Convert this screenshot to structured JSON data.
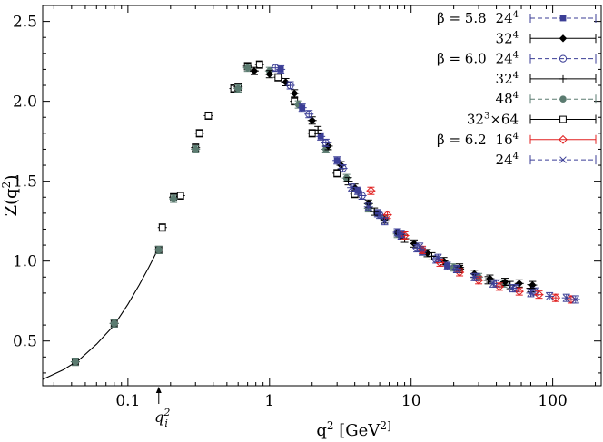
{
  "chart_data": {
    "type": "scatter",
    "title": "",
    "xlabel": "q^2 [GeV^2]",
    "ylabel": "Z(q^2)",
    "xscale": "log",
    "xlim": [
      0.025,
      220
    ],
    "ylim": [
      0.22,
      2.6
    ],
    "x_ticks": [
      {
        "value": 0.1,
        "label": "0.1"
      },
      {
        "value": 1,
        "label": "1"
      },
      {
        "value": 10,
        "label": "10"
      },
      {
        "value": 100,
        "label": "100"
      }
    ],
    "y_ticks": [
      {
        "value": 0.5,
        "label": "0.5"
      },
      {
        "value": 1.0,
        "label": "1.0"
      },
      {
        "value": 1.5,
        "label": "1.5"
      },
      {
        "value": 2.0,
        "label": "2.0"
      },
      {
        "value": 2.5,
        "label": "2.5"
      }
    ],
    "annotation": {
      "text": "q_i^2",
      "x": 0.165
    },
    "legend_placement": "top-right",
    "legend": [
      {
        "group": "β = 5.8",
        "lattice": "24^4",
        "marker": "square-filled",
        "color": "#3b3e96",
        "dashed": true
      },
      {
        "group": "",
        "lattice": "32^4",
        "marker": "diamond-filled",
        "color": "#000000",
        "dashed": false
      },
      {
        "group": "β = 6.0",
        "lattice": "24^4",
        "marker": "circle-open",
        "color": "#3b3e96",
        "dashed": true
      },
      {
        "group": "",
        "lattice": "32^4",
        "marker": "plus",
        "color": "#000000",
        "dashed": false
      },
      {
        "group": "",
        "lattice": "48^4",
        "marker": "circle-filled",
        "color": "#5b7b70",
        "dashed": true
      },
      {
        "group": "",
        "lattice": "32^3×64",
        "marker": "square-open",
        "color": "#000000",
        "dashed": false
      },
      {
        "group": "β = 6.2",
        "lattice": "16^4",
        "marker": "diamond-open",
        "color": "#e02020",
        "dashed": false
      },
      {
        "group": "",
        "lattice": "24^4",
        "marker": "cross",
        "color": "#3b3e96",
        "dashed": true
      }
    ],
    "fit_curve": {
      "x": [
        0.025,
        0.035,
        0.045,
        0.06,
        0.08,
        0.1,
        0.12,
        0.14,
        0.16
      ],
      "y": [
        0.26,
        0.32,
        0.38,
        0.48,
        0.6,
        0.73,
        0.85,
        0.96,
        1.06
      ]
    },
    "series": [
      {
        "name": "β = 6.0 32^3×64",
        "marker": "square-open",
        "color": "#000000",
        "x": [
          0.0425,
          0.08,
          0.165,
          0.175,
          0.21,
          0.235,
          0.3,
          0.32,
          0.37,
          0.56,
          0.6,
          0.7,
          0.85,
          1.15,
          1.5,
          2.0,
          3.0,
          4.0
        ],
        "y": [
          0.37,
          0.61,
          1.07,
          1.21,
          1.4,
          1.41,
          1.71,
          1.8,
          1.91,
          2.08,
          2.09,
          2.22,
          2.23,
          2.15,
          2.0,
          1.8,
          1.55,
          1.42
        ]
      },
      {
        "name": "β = 6.0 48^4",
        "marker": "circle-filled",
        "color": "#5b7b70",
        "x": [
          0.0425,
          0.08,
          0.165,
          0.21,
          0.3,
          0.6,
          0.7,
          1.0,
          1.6,
          2.5,
          3.5,
          5.0,
          8.0,
          12.0,
          20.0,
          30.0,
          45.0
        ],
        "y": [
          0.37,
          0.61,
          1.07,
          1.39,
          1.7,
          2.08,
          2.21,
          2.19,
          1.98,
          1.7,
          1.52,
          1.33,
          1.17,
          1.06,
          0.96,
          0.9,
          0.86
        ]
      },
      {
        "name": "β = 5.8 32^4",
        "marker": "diamond-filled",
        "color": "#000000",
        "x": [
          0.78,
          1.0,
          1.3,
          1.5,
          2.0,
          2.6,
          3.2,
          4.0,
          5.0,
          6.5,
          8.0,
          10.5,
          13.0,
          17.0,
          22.0,
          28.0,
          36.0,
          46.0,
          58.0,
          72.0
        ],
        "y": [
          2.19,
          2.17,
          2.12,
          2.05,
          1.88,
          1.72,
          1.6,
          1.46,
          1.36,
          1.26,
          1.18,
          1.11,
          1.05,
          1.0,
          0.96,
          0.92,
          0.89,
          0.87,
          0.86,
          0.85
        ]
      },
      {
        "name": "β = 5.8 24^4",
        "marker": "square-filled",
        "color": "#3b3e96",
        "x": [
          1.2,
          1.7,
          2.3,
          3.0,
          4.2,
          5.8,
          8.5,
          12.0,
          18.0
        ],
        "y": [
          2.2,
          1.96,
          1.78,
          1.63,
          1.44,
          1.3,
          1.16,
          1.06,
          0.97
        ]
      },
      {
        "name": "β = 6.0 24^4",
        "marker": "circle-open",
        "color": "#3b3e96",
        "x": [
          1.1,
          1.4,
          1.9,
          2.5,
          3.3,
          4.5,
          6.0,
          8.0,
          11.0,
          15.0,
          21.0,
          29.0,
          40.0,
          55.0,
          75.0
        ],
        "y": [
          2.21,
          2.1,
          1.92,
          1.74,
          1.58,
          1.41,
          1.29,
          1.18,
          1.08,
          1.01,
          0.95,
          0.9,
          0.86,
          0.83,
          0.81
        ]
      },
      {
        "name": "β = 6.0 32^4",
        "marker": "plus",
        "color": "#000000",
        "x": [
          2.2,
          3.6,
          5.5,
          9.0,
          14.0,
          22.0,
          35.0,
          50.0,
          70.0
        ],
        "y": [
          1.82,
          1.5,
          1.31,
          1.14,
          1.03,
          0.95,
          0.88,
          0.85,
          0.83
        ]
      },
      {
        "name": "β = 6.2 16^4",
        "marker": "diamond-open",
        "color": "#e02020",
        "x": [
          5.2,
          6.8,
          9.0,
          12.0,
          16.0,
          22.0,
          30.0,
          42.0,
          58.0,
          80.0,
          105.0,
          135.0
        ],
        "y": [
          1.44,
          1.29,
          1.16,
          1.07,
          0.99,
          0.93,
          0.88,
          0.84,
          0.81,
          0.79,
          0.77,
          0.76
        ]
      },
      {
        "name": "β = 6.2 24^4",
        "marker": "cross",
        "color": "#3b3e96",
        "x": [
          3.8,
          5.0,
          6.5,
          8.5,
          11.5,
          15.5,
          21.0,
          28.0,
          38.0,
          52.0,
          70.0,
          95.0,
          125.0,
          145.0
        ],
        "y": [
          1.46,
          1.34,
          1.25,
          1.17,
          1.09,
          1.02,
          0.95,
          0.9,
          0.86,
          0.83,
          0.8,
          0.78,
          0.77,
          0.76
        ]
      }
    ]
  }
}
